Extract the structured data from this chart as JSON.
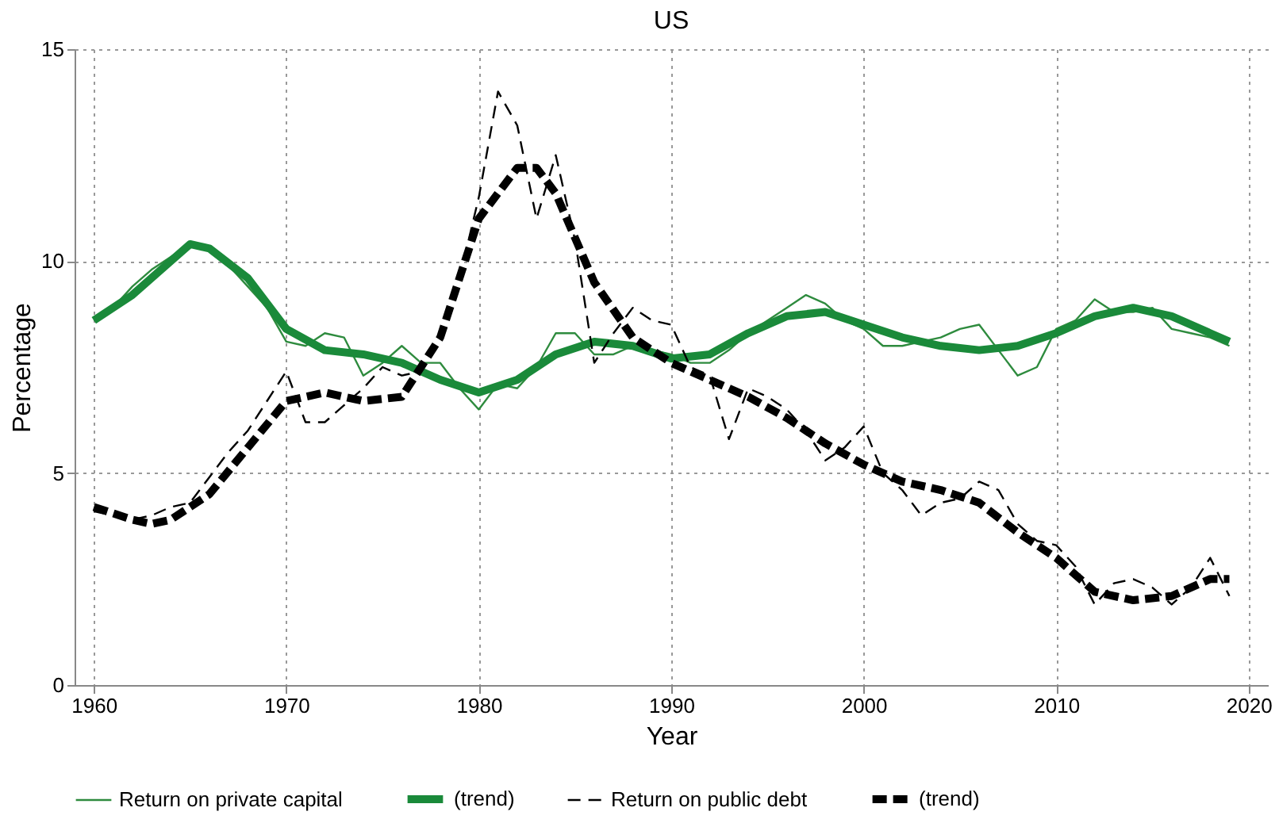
{
  "chart_data": {
    "type": "line",
    "title": "US",
    "xlabel": "Year",
    "ylabel": "Percentage",
    "xlim": [
      1959,
      2021
    ],
    "xticks": [
      1960,
      1970,
      1980,
      1990,
      2000,
      2010,
      2020
    ],
    "ylim": [
      0,
      15
    ],
    "yticks": [
      0,
      5,
      10,
      15
    ],
    "grid": true,
    "legend": "bottom",
    "marker": "none",
    "series": [
      {
        "name": "Return on private capital",
        "color": "#2e8b3e",
        "line_style": "solid",
        "x": [
          1960,
          1961,
          1962,
          1963,
          1964,
          1965,
          1966,
          1967,
          1968,
          1969,
          1970,
          1971,
          1972,
          1973,
          1974,
          1975,
          1976,
          1977,
          1978,
          1979,
          1980,
          1981,
          1982,
          1983,
          1984,
          1985,
          1986,
          1987,
          1988,
          1989,
          1990,
          1991,
          1992,
          1993,
          1994,
          1995,
          1996,
          1997,
          1998,
          1999,
          2000,
          2001,
          2002,
          2003,
          2004,
          2005,
          2006,
          2007,
          2008,
          2009,
          2010,
          2011,
          2012,
          2013,
          2014,
          2015,
          2016,
          2017,
          2018,
          2019
        ],
        "values": [
          8.6,
          8.9,
          9.4,
          9.8,
          10.1,
          10.4,
          10.3,
          9.9,
          9.4,
          8.9,
          8.1,
          8.0,
          8.3,
          8.2,
          7.3,
          7.6,
          8.0,
          7.6,
          7.6,
          7.0,
          6.5,
          7.1,
          7.0,
          7.5,
          8.3,
          8.3,
          7.8,
          7.8,
          8.0,
          7.9,
          7.8,
          7.6,
          7.6,
          7.9,
          8.3,
          8.6,
          8.9,
          9.2,
          9.0,
          8.6,
          8.4,
          8.0,
          8.0,
          8.1,
          8.2,
          8.4,
          8.5,
          7.9,
          7.3,
          7.5,
          8.4,
          8.6,
          9.1,
          8.8,
          8.8,
          8.9,
          8.4,
          8.3,
          8.2,
          8.0
        ]
      },
      {
        "name": "(trend)",
        "color": "#1a8a3a",
        "line_style": "solid",
        "x": [
          1960,
          1962,
          1964,
          1965,
          1966,
          1968,
          1970,
          1972,
          1974,
          1976,
          1978,
          1980,
          1982,
          1984,
          1986,
          1988,
          1990,
          1992,
          1994,
          1996,
          1998,
          2000,
          2002,
          2004,
          2006,
          2008,
          2010,
          2012,
          2014,
          2016,
          2018,
          2019
        ],
        "values": [
          8.6,
          9.2,
          10.0,
          10.4,
          10.3,
          9.6,
          8.4,
          7.9,
          7.8,
          7.6,
          7.2,
          6.9,
          7.2,
          7.8,
          8.1,
          8.0,
          7.7,
          7.8,
          8.3,
          8.7,
          8.8,
          8.5,
          8.2,
          8.0,
          7.9,
          8.0,
          8.3,
          8.7,
          8.9,
          8.7,
          8.3,
          8.1
        ]
      },
      {
        "name": "Return on public debt",
        "color": "#000000",
        "line_style": "dashed",
        "x": [
          1960,
          1961,
          1962,
          1963,
          1964,
          1965,
          1966,
          1967,
          1968,
          1969,
          1970,
          1971,
          1972,
          1973,
          1974,
          1975,
          1976,
          1977,
          1978,
          1979,
          1980,
          1981,
          1982,
          1983,
          1984,
          1985,
          1986,
          1987,
          1988,
          1989,
          1990,
          1991,
          1992,
          1993,
          1994,
          1995,
          1996,
          1997,
          1998,
          1999,
          2000,
          2001,
          2002,
          2003,
          2004,
          2005,
          2006,
          2007,
          2008,
          2009,
          2010,
          2011,
          2012,
          2013,
          2014,
          2015,
          2016,
          2017,
          2018,
          2019
        ],
        "values": [
          4.1,
          4.0,
          3.9,
          4.0,
          4.2,
          4.3,
          4.9,
          5.5,
          6.0,
          6.7,
          7.4,
          6.2,
          6.2,
          6.6,
          7.0,
          7.5,
          7.3,
          7.4,
          8.3,
          9.6,
          11.5,
          14.0,
          13.2,
          11.0,
          12.5,
          10.5,
          7.6,
          8.3,
          8.9,
          8.6,
          8.5,
          7.5,
          7.3,
          5.8,
          7.0,
          6.8,
          6.5,
          6.0,
          5.3,
          5.6,
          6.1,
          5.0,
          4.6,
          4.0,
          4.3,
          4.4,
          4.8,
          4.6,
          3.8,
          3.4,
          3.3,
          2.8,
          1.9,
          2.4,
          2.5,
          2.3,
          1.9,
          2.3,
          3.0,
          2.1
        ]
      },
      {
        "name": "(trend)",
        "color": "#000000",
        "line_style": "dashed",
        "x": [
          1960,
          1962,
          1963,
          1964,
          1966,
          1968,
          1970,
          1972,
          1974,
          1976,
          1978,
          1980,
          1982,
          1983,
          1984,
          1986,
          1988,
          1990,
          1992,
          1994,
          1996,
          1998,
          2000,
          2002,
          2004,
          2006,
          2008,
          2010,
          2012,
          2014,
          2016,
          2018,
          2019
        ],
        "values": [
          4.2,
          3.9,
          3.8,
          3.9,
          4.5,
          5.6,
          6.7,
          6.9,
          6.7,
          6.8,
          8.2,
          11.0,
          12.2,
          12.2,
          11.6,
          9.5,
          8.2,
          7.6,
          7.2,
          6.8,
          6.3,
          5.7,
          5.2,
          4.8,
          4.6,
          4.3,
          3.6,
          3.0,
          2.2,
          2.0,
          2.1,
          2.5,
          2.5
        ]
      }
    ]
  }
}
